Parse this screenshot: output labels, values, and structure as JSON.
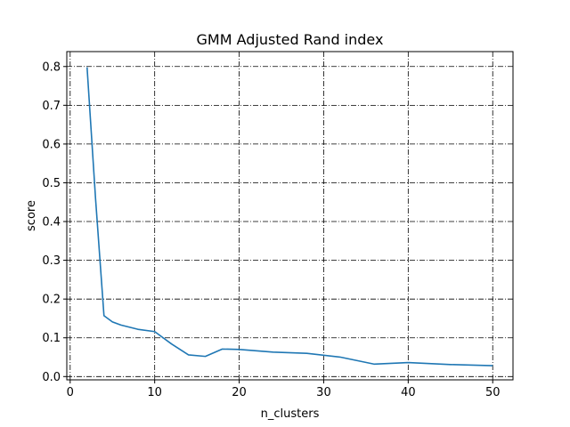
{
  "chart_data": {
    "type": "line",
    "title": "GMM Adjusted Rand index",
    "xlabel": "n_clusters",
    "ylabel": "score",
    "xlim": [
      -0.4,
      52.4
    ],
    "ylim": [
      -0.0085,
      0.8385
    ],
    "xticks": [
      0,
      10,
      20,
      30,
      40,
      50
    ],
    "yticks": [
      0.0,
      0.1,
      0.2,
      0.3,
      0.4,
      0.5,
      0.6,
      0.7,
      0.8
    ],
    "grid": true,
    "line_color": "#1f77b4",
    "series": [
      {
        "x": [
          2,
          3,
          4,
          5,
          6,
          8,
          10,
          12,
          14,
          16,
          18,
          20,
          24,
          28,
          32,
          36,
          40,
          45,
          50
        ],
        "y": [
          0.798,
          0.46,
          0.157,
          0.141,
          0.133,
          0.122,
          0.116,
          0.084,
          0.056,
          0.052,
          0.071,
          0.07,
          0.063,
          0.06,
          0.05,
          0.032,
          0.036,
          0.031,
          0.028
        ]
      }
    ]
  }
}
